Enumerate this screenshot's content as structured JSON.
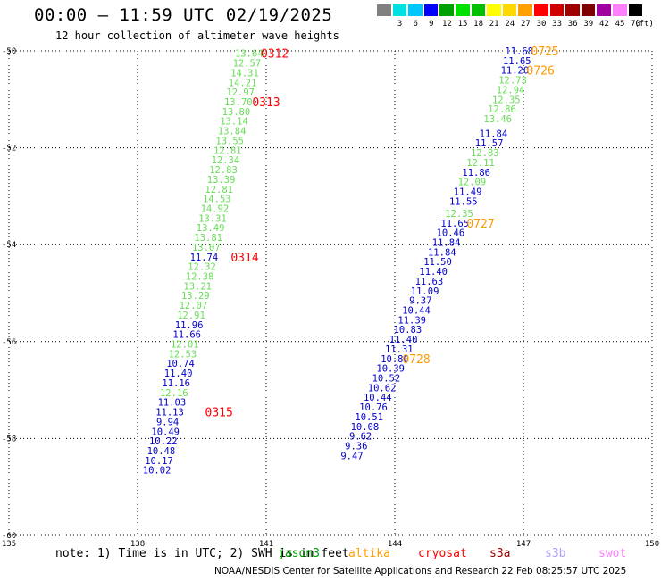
{
  "title": "00:00 – 11:59 UTC 02/19/2025",
  "subtitle": "12 hour collection of altimeter wave heights",
  "legend": {
    "bins": [
      {
        "label": "",
        "color": "#808080"
      },
      {
        "label": "3",
        "color": "#00e0e0"
      },
      {
        "label": "6",
        "color": "#00c8ff"
      },
      {
        "label": "9",
        "color": "#0000ff"
      },
      {
        "label": "12",
        "color": "#00a000"
      },
      {
        "label": "15",
        "color": "#00e000"
      },
      {
        "label": "18",
        "color": "#00c000"
      },
      {
        "label": "21",
        "color": "#ffff00"
      },
      {
        "label": "24",
        "color": "#ffd800"
      },
      {
        "label": "27",
        "color": "#ffa000"
      },
      {
        "label": "30",
        "color": "#ff0000"
      },
      {
        "label": "33",
        "color": "#d00000"
      },
      {
        "label": "36",
        "color": "#a00000"
      },
      {
        "label": "39",
        "color": "#800000"
      },
      {
        "label": "42",
        "color": "#a000a0"
      },
      {
        "label": "45",
        "color": "#ff80ff"
      },
      {
        "label": "70",
        "color": "#000000"
      }
    ],
    "unit": "(ft)"
  },
  "footer": {
    "note": "note: 1) Time is in UTC; 2) SWH is in feet",
    "satellites": [
      {
        "name": "jason3",
        "color": "#00a000"
      },
      {
        "name": "altika",
        "color": "#ffa000"
      },
      {
        "name": "cryosat",
        "color": "#ff0000"
      },
      {
        "name": "s3a",
        "color": "#a00000"
      },
      {
        "name": "s3b",
        "color": "#b0a0ff"
      },
      {
        "name": "swot",
        "color": "#ff80ff"
      }
    ],
    "credit": "NOAA/NESDIS Center for Satellite Applications and Research    22 Feb 08:25:57 UTC 2025"
  },
  "chart_data": {
    "type": "scatter",
    "xlim": [
      135,
      150
    ],
    "ylim": [
      -60,
      -50
    ],
    "x_ticks": [
      "135",
      "138",
      "141",
      "144",
      "147",
      "150"
    ],
    "y_ticks": [
      "-50",
      "-52",
      "-54",
      "-56",
      "-58",
      "-60"
    ],
    "grid": true,
    "colors": {
      "blue": "#0000cc",
      "green": "#66dd55",
      "red": "#ff0000",
      "orange": "#ff9900"
    },
    "tracks": [
      {
        "name": "west track",
        "points": [
          {
            "x": 140.6,
            "y": -50.05,
            "v": "13.64",
            "c": "green"
          },
          {
            "x": 140.55,
            "y": -50.25,
            "v": "12.57",
            "c": "green"
          },
          {
            "x": 140.5,
            "y": -50.45,
            "v": "14.31",
            "c": "green"
          },
          {
            "x": 140.45,
            "y": -50.65,
            "v": "14.21",
            "c": "green"
          },
          {
            "x": 140.4,
            "y": -50.85,
            "v": "12.97",
            "c": "green"
          },
          {
            "x": 140.35,
            "y": -51.05,
            "v": "13.70",
            "c": "green"
          },
          {
            "x": 140.3,
            "y": -51.25,
            "v": "13.80",
            "c": "green"
          },
          {
            "x": 140.25,
            "y": -51.45,
            "v": "13.14",
            "c": "green"
          },
          {
            "x": 140.2,
            "y": -51.65,
            "v": "13.84",
            "c": "green"
          },
          {
            "x": 140.15,
            "y": -51.85,
            "v": "13.55",
            "c": "green"
          },
          {
            "x": 140.1,
            "y": -52.05,
            "v": "12.81",
            "c": "green"
          },
          {
            "x": 140.05,
            "y": -52.25,
            "v": "12.34",
            "c": "green"
          },
          {
            "x": 140.0,
            "y": -52.45,
            "v": "12.83",
            "c": "green"
          },
          {
            "x": 139.95,
            "y": -52.65,
            "v": "13.39",
            "c": "green"
          },
          {
            "x": 139.9,
            "y": -52.85,
            "v": "12.81",
            "c": "green"
          },
          {
            "x": 139.85,
            "y": -53.05,
            "v": "14.53",
            "c": "green"
          },
          {
            "x": 139.8,
            "y": -53.25,
            "v": "14.92",
            "c": "green"
          },
          {
            "x": 139.75,
            "y": -53.45,
            "v": "13.31",
            "c": "green"
          },
          {
            "x": 139.7,
            "y": -53.65,
            "v": "13.49",
            "c": "green"
          },
          {
            "x": 139.65,
            "y": -53.85,
            "v": "13.81",
            "c": "green"
          },
          {
            "x": 139.6,
            "y": -54.05,
            "v": "13.07",
            "c": "green"
          },
          {
            "x": 139.55,
            "y": -54.25,
            "v": "11.74",
            "c": "blue"
          },
          {
            "x": 139.5,
            "y": -54.45,
            "v": "12.32",
            "c": "green"
          },
          {
            "x": 139.45,
            "y": -54.65,
            "v": "12.38",
            "c": "green"
          },
          {
            "x": 139.4,
            "y": -54.85,
            "v": "13.21",
            "c": "green"
          },
          {
            "x": 139.35,
            "y": -55.05,
            "v": "13.29",
            "c": "green"
          },
          {
            "x": 139.3,
            "y": -55.25,
            "v": "12.07",
            "c": "green"
          },
          {
            "x": 139.25,
            "y": -55.45,
            "v": "12.91",
            "c": "green"
          },
          {
            "x": 139.2,
            "y": -55.65,
            "v": "11.96",
            "c": "blue"
          },
          {
            "x": 139.15,
            "y": -55.85,
            "v": "11.66",
            "c": "blue"
          },
          {
            "x": 139.1,
            "y": -56.05,
            "v": "12.01",
            "c": "green"
          },
          {
            "x": 139.05,
            "y": -56.25,
            "v": "12.53",
            "c": "green"
          },
          {
            "x": 139.0,
            "y": -56.45,
            "v": "10.74",
            "c": "blue"
          },
          {
            "x": 138.95,
            "y": -56.65,
            "v": "11.40",
            "c": "blue"
          },
          {
            "x": 138.9,
            "y": -56.85,
            "v": "11.16",
            "c": "blue"
          },
          {
            "x": 138.85,
            "y": -57.05,
            "v": "12.16",
            "c": "green"
          },
          {
            "x": 138.8,
            "y": -57.25,
            "v": "11.03",
            "c": "blue"
          },
          {
            "x": 138.75,
            "y": -57.45,
            "v": "11.13",
            "c": "blue"
          },
          {
            "x": 138.7,
            "y": -57.65,
            "v": "9.94",
            "c": "blue"
          },
          {
            "x": 138.65,
            "y": -57.85,
            "v": "10.49",
            "c": "blue"
          },
          {
            "x": 138.6,
            "y": -58.05,
            "v": "10.22",
            "c": "blue"
          },
          {
            "x": 138.55,
            "y": -58.25,
            "v": "10.48",
            "c": "blue"
          },
          {
            "x": 138.5,
            "y": -58.45,
            "v": "10.17",
            "c": "blue"
          },
          {
            "x": 138.45,
            "y": -58.65,
            "v": "10.02",
            "c": "blue"
          }
        ]
      },
      {
        "name": "east track",
        "points": [
          {
            "x": 146.9,
            "y": -50.0,
            "v": "11.68",
            "c": "blue"
          },
          {
            "x": 146.85,
            "y": -50.2,
            "v": "11.65",
            "c": "blue"
          },
          {
            "x": 146.8,
            "y": -50.4,
            "v": "11.20",
            "c": "blue"
          },
          {
            "x": 146.75,
            "y": -50.6,
            "v": "12.73",
            "c": "green"
          },
          {
            "x": 146.7,
            "y": -50.8,
            "v": "12.94",
            "c": "green"
          },
          {
            "x": 146.6,
            "y": -51.0,
            "v": "12.35",
            "c": "green"
          },
          {
            "x": 146.5,
            "y": -51.2,
            "v": "12.86",
            "c": "green"
          },
          {
            "x": 146.4,
            "y": -51.4,
            "v": "13.46",
            "c": "green"
          },
          {
            "x": 146.3,
            "y": -51.7,
            "v": "11.84",
            "c": "blue"
          },
          {
            "x": 146.2,
            "y": -51.9,
            "v": "11.57",
            "c": "blue"
          },
          {
            "x": 146.1,
            "y": -52.1,
            "v": "12.83",
            "c": "green"
          },
          {
            "x": 146.0,
            "y": -52.3,
            "v": "12.11",
            "c": "green"
          },
          {
            "x": 145.9,
            "y": -52.5,
            "v": "11.86",
            "c": "blue"
          },
          {
            "x": 145.8,
            "y": -52.7,
            "v": "12.09",
            "c": "green"
          },
          {
            "x": 145.7,
            "y": -52.9,
            "v": "11.49",
            "c": "blue"
          },
          {
            "x": 145.6,
            "y": -53.1,
            "v": "11.55",
            "c": "blue"
          },
          {
            "x": 145.5,
            "y": -53.35,
            "v": "12.35",
            "c": "green"
          },
          {
            "x": 145.4,
            "y": -53.55,
            "v": "11.65",
            "c": "blue"
          },
          {
            "x": 145.3,
            "y": -53.75,
            "v": "10.46",
            "c": "blue"
          },
          {
            "x": 145.2,
            "y": -53.95,
            "v": "11.84",
            "c": "blue"
          },
          {
            "x": 145.1,
            "y": -54.15,
            "v": "11.84",
            "c": "blue"
          },
          {
            "x": 145.0,
            "y": -54.35,
            "v": "11.50",
            "c": "blue"
          },
          {
            "x": 144.9,
            "y": -54.55,
            "v": "11.40",
            "c": "blue"
          },
          {
            "x": 144.8,
            "y": -54.75,
            "v": "11.63",
            "c": "blue"
          },
          {
            "x": 144.7,
            "y": -54.95,
            "v": "11.09",
            "c": "blue"
          },
          {
            "x": 144.6,
            "y": -55.15,
            "v": "9.37",
            "c": "blue"
          },
          {
            "x": 144.5,
            "y": -55.35,
            "v": "10.44",
            "c": "blue"
          },
          {
            "x": 144.4,
            "y": -55.55,
            "v": "11.39",
            "c": "blue"
          },
          {
            "x": 144.3,
            "y": -55.75,
            "v": "10.83",
            "c": "blue"
          },
          {
            "x": 144.2,
            "y": -55.95,
            "v": "11.40",
            "c": "blue"
          },
          {
            "x": 144.1,
            "y": -56.15,
            "v": "11.31",
            "c": "blue"
          },
          {
            "x": 144.0,
            "y": -56.35,
            "v": "10.80",
            "c": "blue"
          },
          {
            "x": 143.9,
            "y": -56.55,
            "v": "10.39",
            "c": "blue"
          },
          {
            "x": 143.8,
            "y": -56.75,
            "v": "10.52",
            "c": "blue"
          },
          {
            "x": 143.7,
            "y": -56.95,
            "v": "10.62",
            "c": "blue"
          },
          {
            "x": 143.6,
            "y": -57.15,
            "v": "10.44",
            "c": "blue"
          },
          {
            "x": 143.5,
            "y": -57.35,
            "v": "10.76",
            "c": "blue"
          },
          {
            "x": 143.4,
            "y": -57.55,
            "v": "10.51",
            "c": "blue"
          },
          {
            "x": 143.3,
            "y": -57.75,
            "v": "10.08",
            "c": "blue"
          },
          {
            "x": 143.2,
            "y": -57.95,
            "v": "9.62",
            "c": "blue"
          },
          {
            "x": 143.1,
            "y": -58.15,
            "v": "9.36",
            "c": "blue"
          },
          {
            "x": 143.0,
            "y": -58.35,
            "v": "9.47",
            "c": "blue"
          }
        ]
      }
    ],
    "time_labels": [
      {
        "x": 141.2,
        "y": -50.05,
        "t": "0312",
        "c": "red"
      },
      {
        "x": 141.0,
        "y": -51.05,
        "t": "0313",
        "c": "red"
      },
      {
        "x": 140.5,
        "y": -54.25,
        "t": "0314",
        "c": "red"
      },
      {
        "x": 139.9,
        "y": -57.45,
        "t": "0315",
        "c": "red"
      },
      {
        "x": 147.5,
        "y": -50.0,
        "t": "0725",
        "c": "orange"
      },
      {
        "x": 147.4,
        "y": -50.4,
        "t": "0726",
        "c": "orange"
      },
      {
        "x": 146.0,
        "y": -53.55,
        "t": "0727",
        "c": "orange"
      },
      {
        "x": 144.5,
        "y": -56.35,
        "t": "0728",
        "c": "orange"
      }
    ]
  }
}
